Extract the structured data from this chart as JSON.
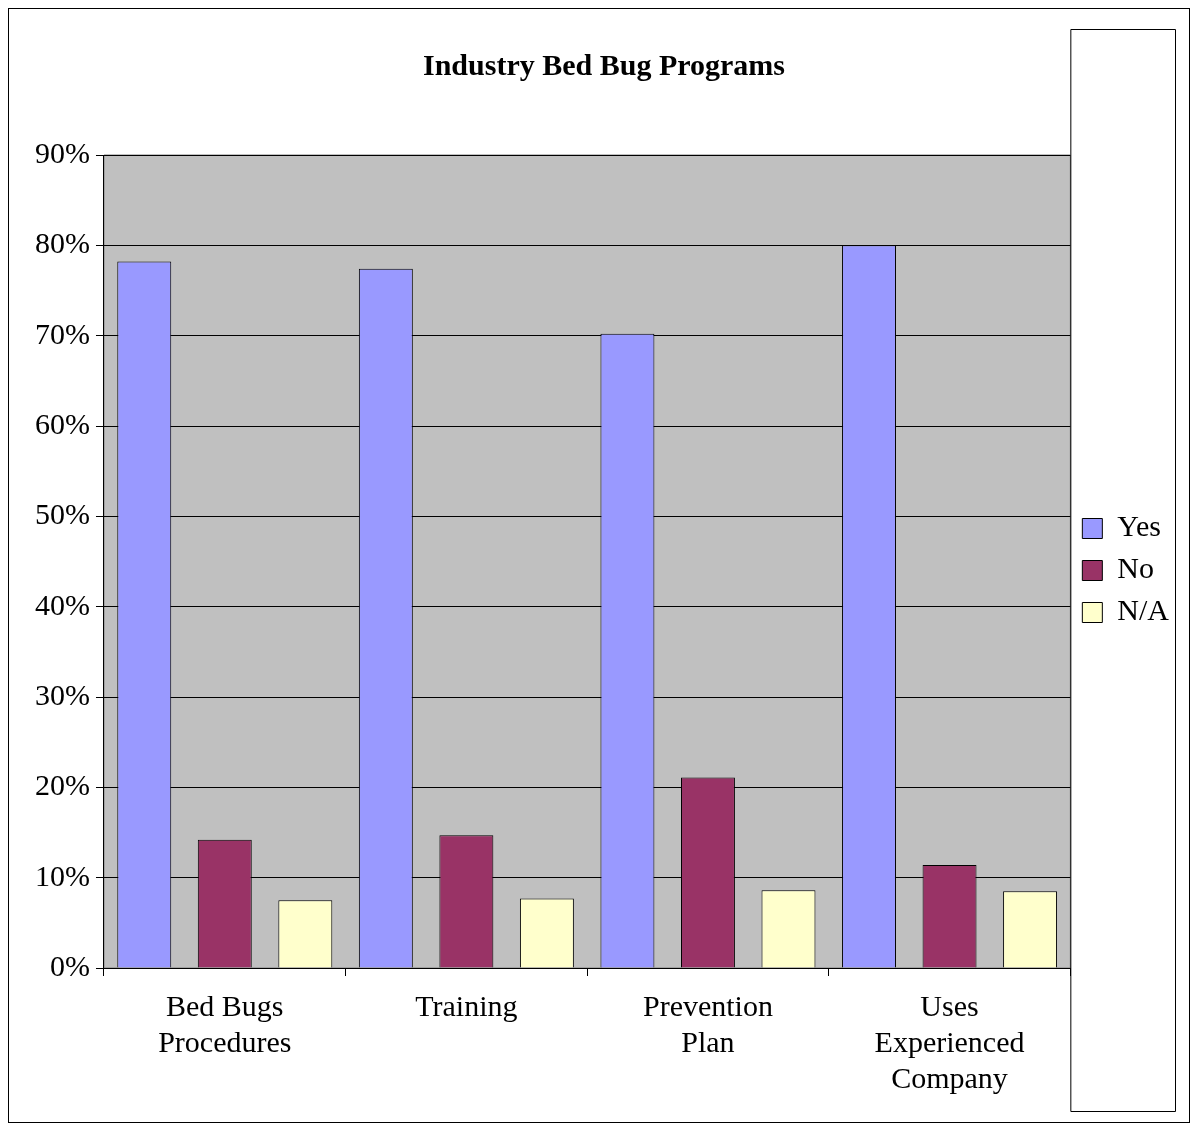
{
  "chart_data": {
    "type": "bar",
    "title": "Industry Bed Bug Programs",
    "categories": [
      "Bed Bugs Procedures",
      "Training",
      "Prevention Plan",
      "Uses Experienced Company"
    ],
    "series": [
      {
        "name": "Yes",
        "color": "#9999ff",
        "values": [
          78.2,
          77.4,
          70.2,
          80
        ]
      },
      {
        "name": "No",
        "color": "#993366",
        "values": [
          14.2,
          14.7,
          21.1,
          11.4
        ]
      },
      {
        "name": "N/A",
        "color": "#ffffcc",
        "values": [
          7.5,
          7.7,
          8.6,
          8.5
        ]
      }
    ],
    "ylim": [
      0,
      90
    ],
    "yticks": [
      {
        "value": 0,
        "label": "0%"
      },
      {
        "value": 10,
        "label": "10%"
      },
      {
        "value": 20,
        "label": "20%"
      },
      {
        "value": 30,
        "label": "30%"
      },
      {
        "value": 40,
        "label": "40%"
      },
      {
        "value": 50,
        "label": "50%"
      },
      {
        "value": 60,
        "label": "60%"
      },
      {
        "value": 70,
        "label": "70%"
      },
      {
        "value": 80,
        "label": "80%"
      },
      {
        "value": 90,
        "label": "90%"
      }
    ],
    "grid": "y",
    "legend": "right"
  }
}
